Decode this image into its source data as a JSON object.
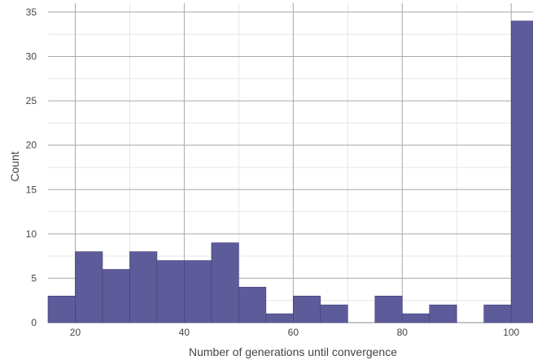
{
  "chart_data": {
    "type": "bar",
    "title": "",
    "xlabel": "Number of generations until convergence",
    "ylabel": "Count",
    "x_bins": [
      [
        15,
        20
      ],
      [
        20,
        25
      ],
      [
        25,
        30
      ],
      [
        30,
        35
      ],
      [
        35,
        40
      ],
      [
        40,
        45
      ],
      [
        45,
        50
      ],
      [
        50,
        55
      ],
      [
        55,
        60
      ],
      [
        60,
        65
      ],
      [
        65,
        70
      ],
      [
        70,
        75
      ],
      [
        75,
        80
      ],
      [
        80,
        85
      ],
      [
        85,
        90
      ],
      [
        90,
        95
      ],
      [
        95,
        100
      ],
      [
        100,
        105
      ]
    ],
    "values": [
      3,
      8,
      6,
      8,
      7,
      7,
      9,
      4,
      1,
      3,
      2,
      0,
      3,
      1,
      2,
      0,
      2,
      34
    ],
    "xlim": [
      15,
      104
    ],
    "ylim": [
      0,
      36
    ],
    "xticks": [
      20,
      40,
      60,
      80,
      100
    ],
    "yticks": [
      0,
      5,
      10,
      15,
      20,
      25,
      30,
      35
    ],
    "grid": true,
    "colors": {
      "bar_fill": "#5d5b99",
      "bar_stroke": "#3f3d7a",
      "grid_major": "#a8a8a8",
      "grid_minor": "#e6e6e6",
      "axis_text": "#444444"
    }
  }
}
